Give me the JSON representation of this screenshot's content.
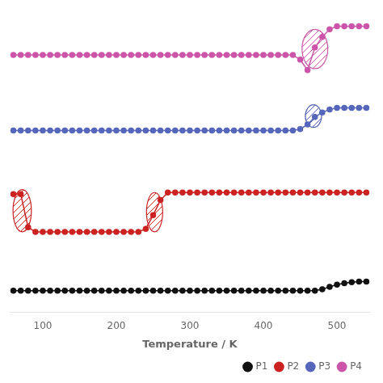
{
  "chart_data": {
    "type": "line",
    "x_label": "Temperature / K",
    "x": [
      60,
      70,
      80,
      90,
      100,
      110,
      120,
      130,
      140,
      150,
      160,
      170,
      180,
      190,
      200,
      210,
      220,
      230,
      240,
      250,
      260,
      270,
      280,
      290,
      300,
      310,
      320,
      330,
      340,
      350,
      360,
      370,
      380,
      390,
      400,
      410,
      420,
      430,
      440,
      450,
      460,
      470,
      480,
      490,
      500,
      510,
      520,
      530,
      540
    ],
    "series": [
      {
        "name": "P1",
        "color": "#111111",
        "values": [
          0.07,
          0.07,
          0.07,
          0.07,
          0.07,
          0.07,
          0.07,
          0.07,
          0.07,
          0.07,
          0.07,
          0.07,
          0.07,
          0.07,
          0.07,
          0.07,
          0.07,
          0.07,
          0.07,
          0.07,
          0.07,
          0.07,
          0.07,
          0.07,
          0.07,
          0.07,
          0.07,
          0.07,
          0.07,
          0.07,
          0.07,
          0.07,
          0.07,
          0.07,
          0.07,
          0.07,
          0.07,
          0.07,
          0.07,
          0.07,
          0.07,
          0.07,
          0.075,
          0.083,
          0.09,
          0.095,
          0.098,
          0.1,
          0.1
        ]
      },
      {
        "name": "P2",
        "color": "#cc2222",
        "values": [
          0.39,
          0.39,
          0.28,
          0.265,
          0.265,
          0.265,
          0.265,
          0.265,
          0.265,
          0.265,
          0.265,
          0.265,
          0.265,
          0.265,
          0.265,
          0.265,
          0.265,
          0.265,
          0.275,
          0.32,
          0.37,
          0.395,
          0.395,
          0.395,
          0.395,
          0.395,
          0.395,
          0.395,
          0.395,
          0.395,
          0.395,
          0.395,
          0.395,
          0.395,
          0.395,
          0.395,
          0.395,
          0.395,
          0.395,
          0.395,
          0.395,
          0.395,
          0.395,
          0.395,
          0.395,
          0.395,
          0.395,
          0.395,
          0.395
        ]
      },
      {
        "name": "P3",
        "color": "#5566bb",
        "values": [
          0.6,
          0.6,
          0.6,
          0.6,
          0.6,
          0.6,
          0.6,
          0.6,
          0.6,
          0.6,
          0.6,
          0.6,
          0.6,
          0.6,
          0.6,
          0.6,
          0.6,
          0.6,
          0.6,
          0.6,
          0.6,
          0.6,
          0.6,
          0.6,
          0.6,
          0.6,
          0.6,
          0.6,
          0.6,
          0.6,
          0.6,
          0.6,
          0.6,
          0.6,
          0.6,
          0.6,
          0.6,
          0.6,
          0.6,
          0.605,
          0.62,
          0.645,
          0.66,
          0.67,
          0.675,
          0.675,
          0.675,
          0.675,
          0.675
        ]
      },
      {
        "name": "P4",
        "color": "#cc55aa",
        "values": [
          0.85,
          0.85,
          0.85,
          0.85,
          0.85,
          0.85,
          0.85,
          0.85,
          0.85,
          0.85,
          0.85,
          0.85,
          0.85,
          0.85,
          0.85,
          0.85,
          0.85,
          0.85,
          0.85,
          0.85,
          0.85,
          0.85,
          0.85,
          0.85,
          0.85,
          0.85,
          0.85,
          0.85,
          0.85,
          0.85,
          0.85,
          0.85,
          0.85,
          0.85,
          0.85,
          0.85,
          0.85,
          0.85,
          0.85,
          0.835,
          0.8,
          0.875,
          0.91,
          0.935,
          0.945,
          0.945,
          0.945,
          0.945,
          0.945
        ]
      }
    ],
    "ellipses": [
      {
        "x": 72,
        "y": 0.335,
        "width": 25,
        "height": 0.14,
        "color": "#cc2222"
      },
      {
        "x": 252,
        "y": 0.33,
        "width": 22,
        "height": 0.13,
        "color": "#cc2222"
      },
      {
        "x": 468,
        "y": 0.648,
        "width": 22,
        "height": 0.075,
        "color": "#5566bb"
      },
      {
        "x": 470,
        "y": 0.87,
        "width": 35,
        "height": 0.13,
        "color": "#cc55aa"
      }
    ],
    "xlim": [
      55,
      545
    ],
    "ylim": [
      0,
      1
    ],
    "xticks": [
      100,
      200,
      300,
      400,
      500
    ],
    "tick_labels": "x",
    "grid": false,
    "legend": "lower right",
    "marker": "circle",
    "line_style": "solid"
  }
}
